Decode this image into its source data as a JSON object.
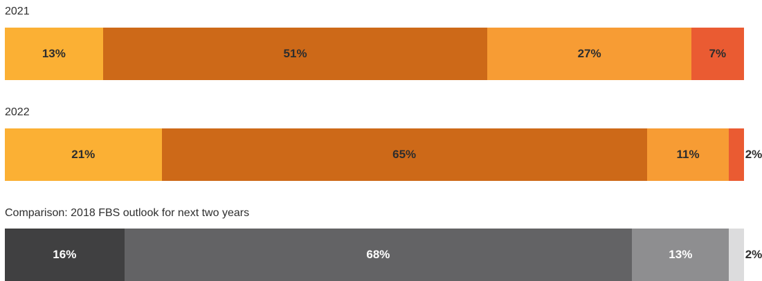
{
  "chart_data": [
    {
      "type": "bar",
      "orientation": "horizontal-stacked",
      "title": "2021",
      "unit": "%",
      "segments": [
        {
          "label": "13%",
          "value": 13,
          "color": "#fbb034"
        },
        {
          "label": "51%",
          "value": 51,
          "color": "#cd6918"
        },
        {
          "label": "27%",
          "value": 27,
          "color": "#f79c34"
        },
        {
          "label": "7%",
          "value": 7,
          "color": "#ea5b32"
        }
      ]
    },
    {
      "type": "bar",
      "orientation": "horizontal-stacked",
      "title": "2022",
      "unit": "%",
      "segments": [
        {
          "label": "21%",
          "value": 21,
          "color": "#fbb034"
        },
        {
          "label": "65%",
          "value": 65,
          "color": "#cd6918"
        },
        {
          "label": "11%",
          "value": 11,
          "color": "#f79c34"
        },
        {
          "label": "2%",
          "value": 2,
          "color": "#ea5b32"
        }
      ]
    },
    {
      "type": "bar",
      "orientation": "horizontal-stacked",
      "title": "Comparison: 2018 FBS outlook for next two years",
      "unit": "%",
      "segments": [
        {
          "label": "16%",
          "value": 16,
          "color": "#404041"
        },
        {
          "label": "68%",
          "value": 68,
          "color": "#636365"
        },
        {
          "label": "13%",
          "value": 13,
          "color": "#8e8e90"
        },
        {
          "label": "2%",
          "value": 2,
          "color": "#dcdcdd"
        }
      ]
    }
  ],
  "label_colors": {
    "on_orange": "#2d2d2d",
    "on_gray": "#ffffff",
    "outside": "#2d2d2d"
  }
}
